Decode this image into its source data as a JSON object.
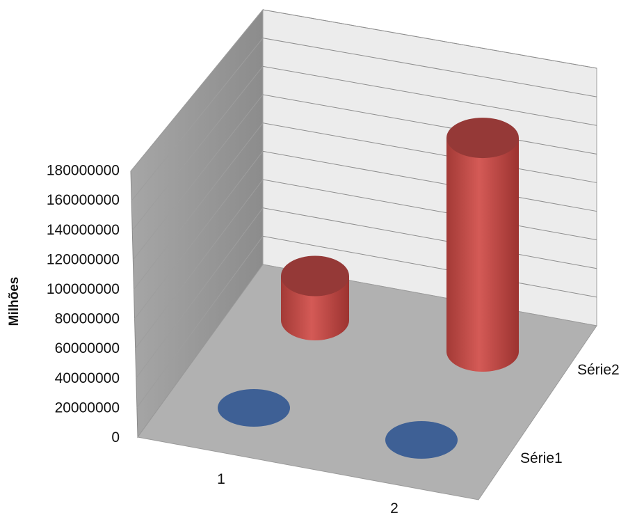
{
  "chart_data": {
    "type": "bar",
    "variant": "3d-cylinder",
    "title": "",
    "xlabel": "",
    "ylabel": "Milhões",
    "ylim": [
      0,
      180000000
    ],
    "y_ticks": [
      "0",
      "20000000",
      "40000000",
      "60000000",
      "80000000",
      "100000000",
      "120000000",
      "140000000",
      "160000000",
      "180000000"
    ],
    "categories": [
      "1",
      "2"
    ],
    "series": [
      {
        "name": "Série1",
        "values": [
          0,
          0
        ],
        "color": "#3e6095"
      },
      {
        "name": "Série2",
        "values": [
          30000000,
          145000000
        ],
        "color": "#c0504d"
      }
    ],
    "grid": true,
    "legend": "none"
  }
}
